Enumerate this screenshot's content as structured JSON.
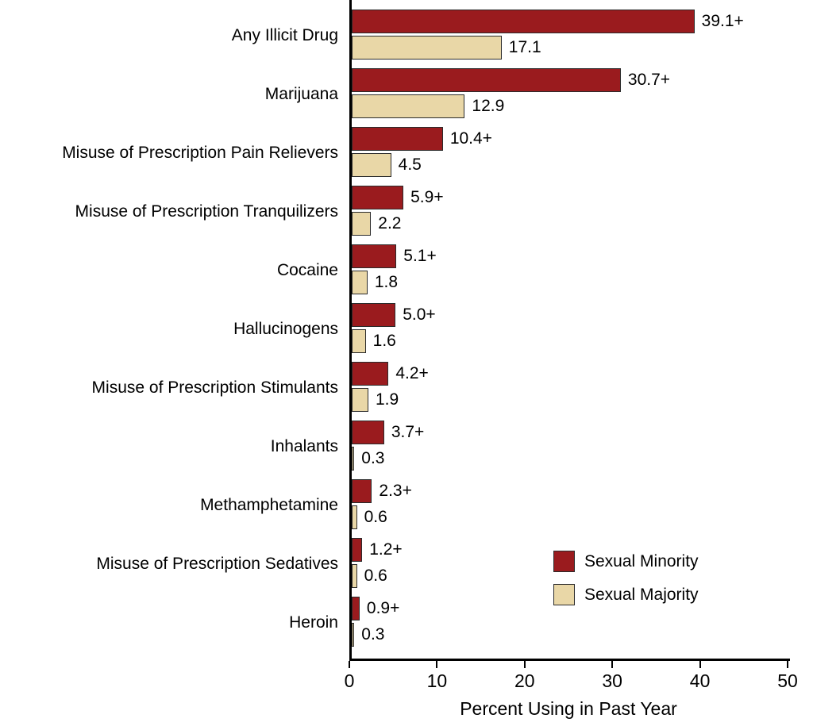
{
  "chart_data": {
    "type": "bar",
    "orientation": "horizontal",
    "title": "",
    "xlabel": "Percent Using in Past Year",
    "ylabel": "",
    "xlim": [
      0,
      50
    ],
    "xticks": [
      0,
      10,
      20,
      30,
      40,
      50
    ],
    "grid": false,
    "legend_position": "inside-lower-right",
    "categories": [
      "Any Illicit Drug",
      "Marijuana",
      "Misuse of Prescription Pain Relievers",
      "Misuse of Prescription Tranquilizers",
      "Cocaine",
      "Hallucinogens",
      "Misuse of Prescription Stimulants",
      "Inhalants",
      "Methamphetamine",
      "Misuse of Prescription Sedatives",
      "Heroin"
    ],
    "series": [
      {
        "name": "Sexual Minority",
        "color": "#9A1B1E",
        "values": [
          39.1,
          30.7,
          10.4,
          5.9,
          5.1,
          5.0,
          4.2,
          3.7,
          2.3,
          1.2,
          0.9
        ],
        "labels": [
          "39.1+",
          "30.7+",
          "10.4+",
          "5.9+",
          "5.1+",
          "5.0+",
          "4.2+",
          "3.7+",
          "2.3+",
          "1.2+",
          "0.9+"
        ]
      },
      {
        "name": "Sexual Majority",
        "color": "#E9D7A7",
        "values": [
          17.1,
          12.9,
          4.5,
          2.2,
          1.8,
          1.6,
          1.9,
          0.3,
          0.6,
          0.6,
          0.3
        ],
        "labels": [
          "17.1",
          "12.9",
          "4.5",
          "2.2",
          "1.8",
          "1.6",
          "1.9",
          "0.3",
          "0.6",
          "0.6",
          "0.3"
        ]
      }
    ]
  },
  "legend": {
    "items": [
      {
        "label": "Sexual Minority",
        "color": "#9A1B1E"
      },
      {
        "label": "Sexual Majority",
        "color": "#E9D7A7"
      }
    ]
  },
  "colors": {
    "axis": "#000000",
    "bar_border": "#2b2b2b",
    "background": "#ffffff",
    "text": "#000000"
  }
}
